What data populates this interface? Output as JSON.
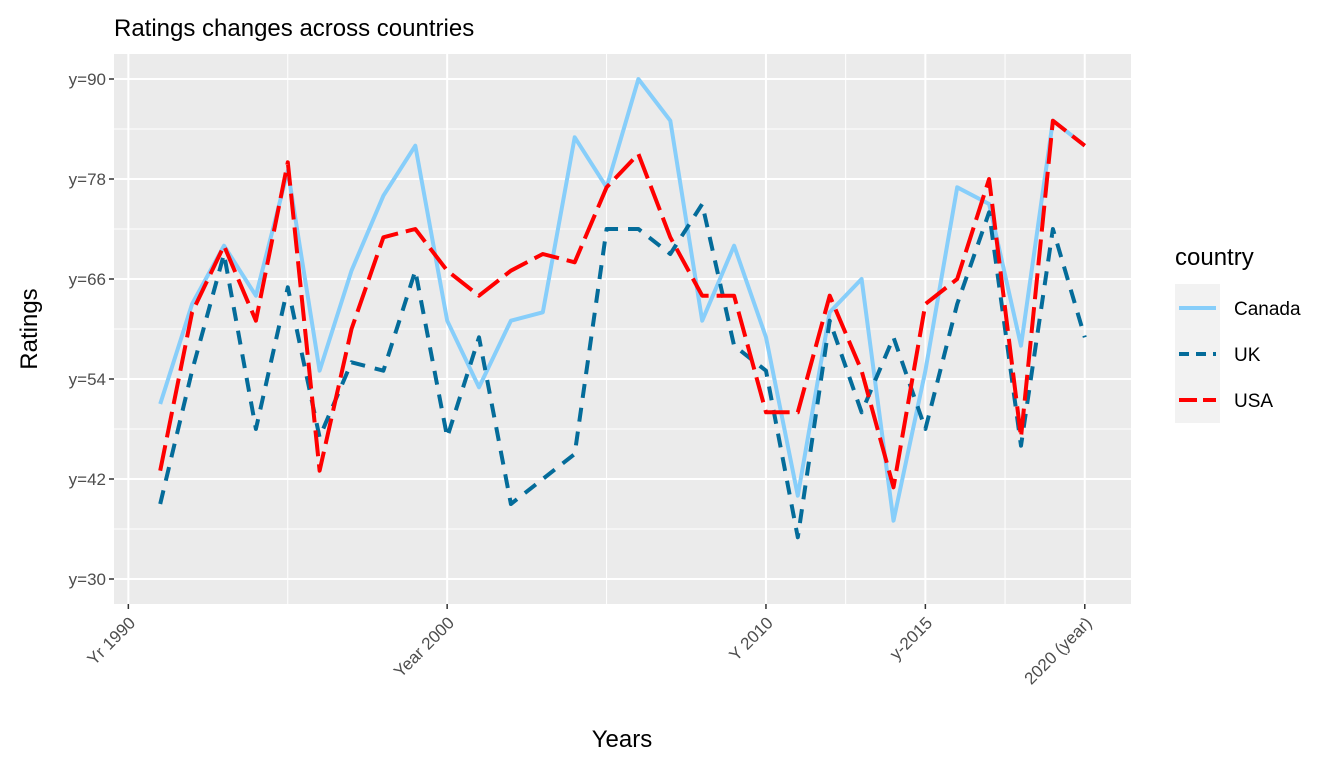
{
  "chart_data": {
    "type": "line",
    "title": "Ratings changes across countries",
    "xlabel": "Years",
    "ylabel": "Ratings",
    "xlim": [
      1989.55,
      2021.45
    ],
    "ylim": [
      27,
      93
    ],
    "x_ticks": [
      {
        "value": 1990,
        "label": "Yr 1990"
      },
      {
        "value": 2000,
        "label": "Year 2000"
      },
      {
        "value": 2010,
        "label": "Y 2010"
      },
      {
        "value": 2015,
        "label": "y-2015"
      },
      {
        "value": 2020,
        "label": "2020 (year)"
      }
    ],
    "x_minor_ticks": [
      1995,
      2005,
      2012.5,
      2017.5
    ],
    "y_ticks": [
      {
        "value": 30,
        "label": "y=30"
      },
      {
        "value": 42,
        "label": "y=42"
      },
      {
        "value": 54,
        "label": "y=54"
      },
      {
        "value": 66,
        "label": "y=66"
      },
      {
        "value": 78,
        "label": "y=78"
      },
      {
        "value": 90,
        "label": "y=90"
      }
    ],
    "y_minor_ticks": [
      36,
      48,
      60,
      72,
      84
    ],
    "grid": true,
    "legend": {
      "title": "country",
      "position": "right"
    },
    "x": [
      1991,
      1992,
      1993,
      1994,
      1995,
      1996,
      1997,
      1998,
      1999,
      2000,
      2001,
      2002,
      2003,
      2004,
      2005,
      2006,
      2007,
      2008,
      2009,
      2010,
      2011,
      2012,
      2013,
      2014,
      2015,
      2016,
      2017,
      2018,
      2019,
      2020
    ],
    "series": [
      {
        "name": "Canada",
        "color": "#87cefa",
        "dash": "solid",
        "values": [
          51,
          63,
          70,
          64,
          79,
          55,
          67,
          76,
          82,
          61,
          53,
          61,
          62,
          83,
          77,
          90,
          85,
          61,
          70,
          59,
          40,
          62,
          66,
          37,
          55,
          77,
          75,
          58,
          85,
          82
        ]
      },
      {
        "name": "UK",
        "color": "#046c9a",
        "dash": "dashed",
        "values": [
          39,
          55,
          69,
          48,
          65,
          47,
          56,
          55,
          67,
          47,
          59,
          39,
          42,
          45,
          72,
          72,
          69,
          75,
          58,
          55,
          35,
          61,
          50,
          59,
          48,
          63,
          74,
          46,
          72,
          59
        ]
      },
      {
        "name": "USA",
        "color": "#ff0000",
        "dash": "longdash",
        "values": [
          43,
          62,
          70,
          61,
          80,
          43,
          60,
          71,
          72,
          67,
          64,
          67,
          69,
          68,
          77,
          81,
          71,
          64,
          64,
          50,
          50,
          64,
          55,
          41,
          63,
          66,
          78,
          47,
          85,
          82
        ]
      }
    ]
  }
}
